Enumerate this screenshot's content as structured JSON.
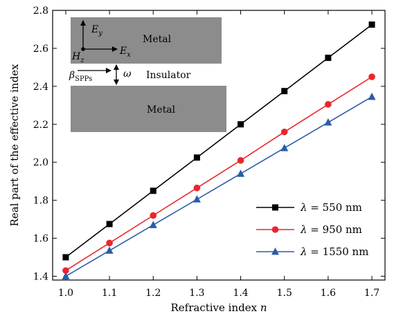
{
  "chart_data": {
    "type": "line",
    "xlabel": "Refractive index n",
    "ylabel": "Real part of the effective index",
    "xlim": [
      0.97,
      1.73
    ],
    "ylim": [
      1.38,
      2.8
    ],
    "x_ticks": [
      "1.0",
      "1.1",
      "1.2",
      "1.3",
      "1.4",
      "1.5",
      "1.6",
      "1.7"
    ],
    "y_ticks": [
      "1.4",
      "1.6",
      "1.8",
      "2.0",
      "2.2",
      "2.4",
      "2.6",
      "2.8"
    ],
    "legend_position": "bottom-right",
    "x": [
      1.0,
      1.1,
      1.2,
      1.3,
      1.4,
      1.5,
      1.6,
      1.7
    ],
    "series": [
      {
        "name": "λ = 550 nm",
        "color": "#000000",
        "marker": "square",
        "values": [
          1.5,
          1.675,
          1.85,
          2.025,
          2.2,
          2.375,
          2.55,
          2.725
        ]
      },
      {
        "name": "λ = 950 nm",
        "color": "#e8262b",
        "marker": "circle",
        "values": [
          1.43,
          1.575,
          1.72,
          1.865,
          2.01,
          2.16,
          2.305,
          2.45
        ]
      },
      {
        "name": "λ = 1550 nm",
        "color": "#2a5ca8",
        "marker": "triangle",
        "values": [
          1.4,
          1.535,
          1.67,
          1.805,
          1.94,
          2.075,
          2.21,
          2.345
        ]
      }
    ],
    "inset": {
      "top_label": "Metal",
      "middle_label": "Insulator",
      "bottom_label": "Metal",
      "ey_label": "E",
      "ey_sub": "y",
      "ex_label": "E",
      "ex_sub": "x",
      "hz_label": "H",
      "hz_sub": "z",
      "beta_label": "β",
      "beta_sub": "SPPs",
      "omega_label": "ω",
      "metal_color": "#8c8c8c"
    }
  }
}
